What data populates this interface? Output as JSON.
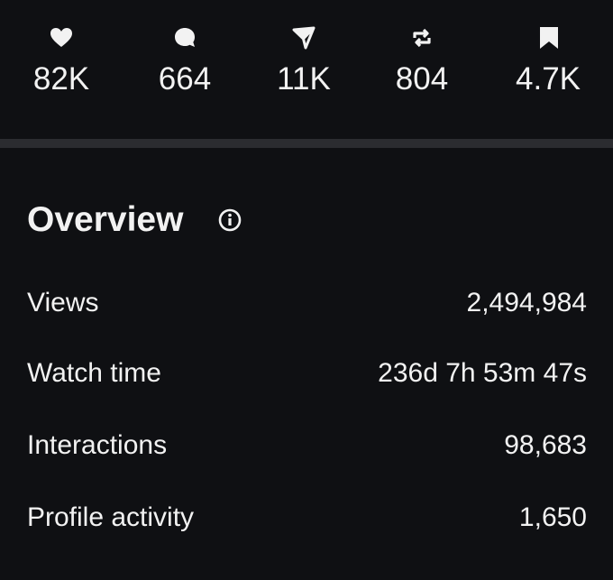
{
  "stats": [
    {
      "label": "82K"
    },
    {
      "label": "664"
    },
    {
      "label": "11K"
    },
    {
      "label": "804"
    },
    {
      "label": "4.7K"
    }
  ],
  "overview": {
    "title": "Overview",
    "rows": [
      [
        "Views",
        "2,494,984"
      ],
      [
        "Watch time",
        "236d 7h 53m 47s"
      ],
      [
        "Interactions",
        "98,683"
      ],
      [
        "Profile activity",
        "1,650"
      ]
    ]
  }
}
